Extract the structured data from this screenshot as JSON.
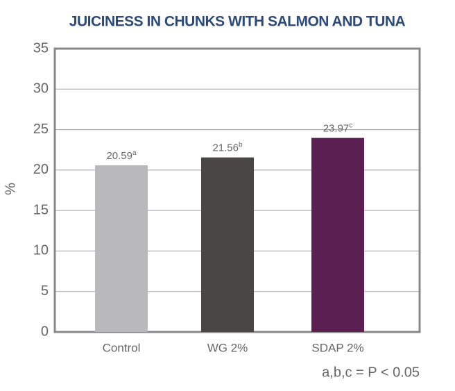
{
  "chart_data": {
    "type": "bar",
    "title": "JUICINESS IN CHUNKS WITH SALMON AND TUNA",
    "y_label": "%",
    "categories": [
      "Control",
      "WG 2%",
      "SDAP 2%"
    ],
    "values": [
      20.59,
      21.56,
      23.97
    ],
    "superscripts": [
      "a",
      "b",
      "c"
    ],
    "colors": [
      "#b9b9bd",
      "#4a4646",
      "#5c1f52"
    ],
    "ylim": [
      0,
      35
    ],
    "yticks": [
      0,
      5,
      10,
      15,
      20,
      25,
      30,
      35
    ],
    "grid": true,
    "note": "a,b,c = P < 0.05"
  }
}
